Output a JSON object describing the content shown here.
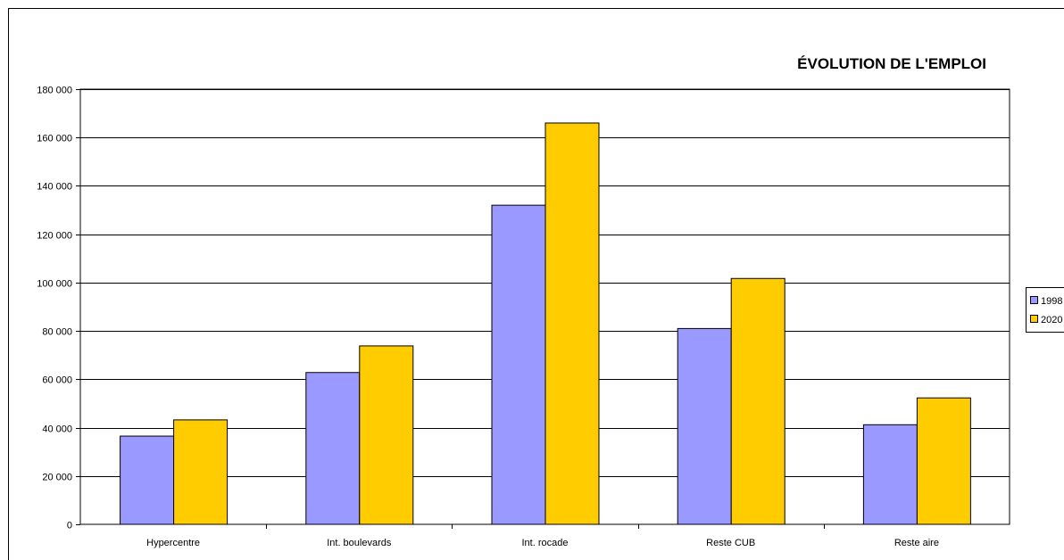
{
  "chart_data": {
    "type": "bar",
    "title": "ÉVOLUTION DE L'EMPLOI",
    "categories": [
      "Hypercentre",
      "Int. boulevards",
      "Int. rocade",
      "Reste CUB",
      "Reste aire"
    ],
    "series": [
      {
        "name": "1998",
        "color": "#9999FF",
        "values": [
          36500,
          62800,
          132000,
          81000,
          41200
        ]
      },
      {
        "name": "2020",
        "color": "#FFCC00",
        "values": [
          43200,
          73800,
          166000,
          101700,
          52300
        ]
      }
    ],
    "ylim": [
      0,
      180000
    ],
    "yticks": [
      0,
      20000,
      40000,
      60000,
      80000,
      100000,
      120000,
      140000,
      160000,
      180000
    ],
    "ytick_labels": [
      "0",
      "20 000",
      "40 000",
      "60 000",
      "80 000",
      "100 000",
      "120 000",
      "140 000",
      "160 000",
      "180 000"
    ],
    "grid": true,
    "legend_position": "right",
    "xlabel": "",
    "ylabel": ""
  }
}
